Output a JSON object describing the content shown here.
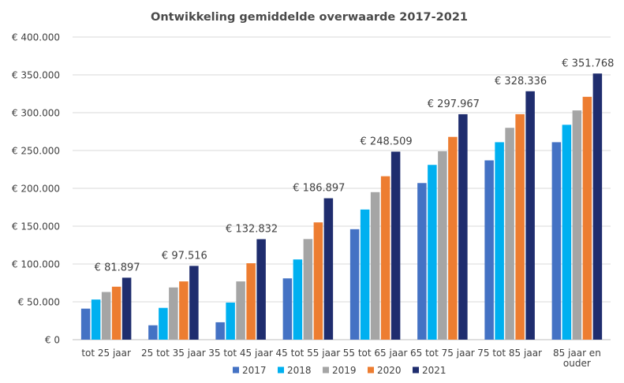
{
  "chart_data": {
    "type": "bar",
    "title": "Ontwikkeling gemiddelde overwaarde 2017-2021",
    "categories": [
      "tot 25 jaar",
      "25 tot 35 jaar",
      "35 tot 45 jaar",
      "45 tot 55 jaar",
      "55 tot 65 jaar",
      "65 tot 75 jaar",
      "75 tot 85 jaar",
      "85 jaar en ouder"
    ],
    "category_lines": [
      [
        "tot 25 jaar"
      ],
      [
        "25 tot 35 jaar"
      ],
      [
        "35 tot 45 jaar"
      ],
      [
        "45 tot 55 jaar"
      ],
      [
        "55 tot 65 jaar"
      ],
      [
        "65 tot 75 jaar"
      ],
      [
        "75 tot 85 jaar"
      ],
      [
        "85 jaar en",
        "ouder"
      ]
    ],
    "series": [
      {
        "name": "2017",
        "color": "#4472c4",
        "values": [
          41000,
          19000,
          23000,
          81000,
          146000,
          207000,
          237000,
          261000
        ]
      },
      {
        "name": "2018",
        "color": "#00b0f0",
        "values": [
          53000,
          42000,
          49000,
          106000,
          172000,
          231000,
          261000,
          284000
        ]
      },
      {
        "name": "2019",
        "color": "#a5a5a5",
        "values": [
          63000,
          69000,
          77000,
          133000,
          195000,
          249000,
          280000,
          303000
        ]
      },
      {
        "name": "2020",
        "color": "#ed7d31",
        "values": [
          70000,
          77000,
          101000,
          155000,
          216000,
          268000,
          298000,
          321000
        ]
      },
      {
        "name": "2021",
        "color": "#1f2d6e",
        "values": [
          81897,
          97516,
          132832,
          186897,
          248509,
          297967,
          328336,
          351768
        ]
      }
    ],
    "data_labels": [
      "€ 81.897",
      "€ 97.516",
      "€ 132.832",
      "€ 186.897",
      "€ 248.509",
      "€ 297.967",
      "€ 328.336",
      "€ 351.768"
    ],
    "yticks": [
      0,
      50000,
      100000,
      150000,
      200000,
      250000,
      300000,
      350000,
      400000
    ],
    "ytick_labels": [
      "€ 0",
      "€ 50.000",
      "€ 100.000",
      "€ 150.000",
      "€ 200.000",
      "€ 250.000",
      "€ 300.000",
      "€ 350.000",
      "€ 400.000"
    ],
    "ylim": [
      0,
      400000
    ],
    "grid": true,
    "legend_position": "bottom"
  }
}
